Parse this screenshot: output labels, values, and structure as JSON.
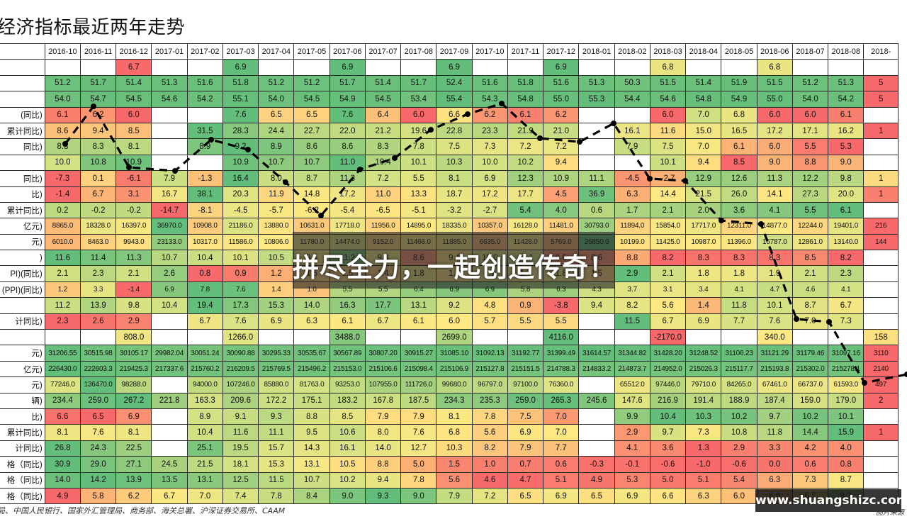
{
  "title": "经济指标最近两年走势",
  "months": [
    "2016-10",
    "2016-11",
    "2016-12",
    "2017-01",
    "2017-02",
    "2017-03",
    "2017-04",
    "2017-05",
    "2017-06",
    "2017-07",
    "2017-08",
    "2017-09",
    "2017-10",
    "2017-11",
    "2017-12",
    "2018-01",
    "2018-02",
    "2018-03",
    "2018-04",
    "2018-05",
    "2018-06",
    "2018-07",
    "2018-08",
    "2018-"
  ],
  "rows": [
    {
      "label": "",
      "cells": [
        "",
        "",
        "6.7",
        "",
        "",
        "6.9",
        "",
        "",
        "6.9",
        "",
        "",
        "6.9",
        "",
        "",
        "6.9",
        "",
        "",
        "6.8",
        "",
        "",
        "6.8",
        "",
        "",
        ""
      ]
    },
    {
      "label": "",
      "cells": [
        "51.2",
        "51.7",
        "51.4",
        "51.3",
        "51.6",
        "51.8",
        "51.2",
        "51.2",
        "51.7",
        "51.4",
        "51.7",
        "52.4",
        "51.6",
        "51.8",
        "51.6",
        "51.3",
        "50.3",
        "51.5",
        "51.4",
        "51.9",
        "51.5",
        "51.2",
        "51.3",
        "5"
      ]
    },
    {
      "label": "",
      "cells": [
        "54.0",
        "54.7",
        "54.5",
        "54.6",
        "54.2",
        "55.1",
        "54.0",
        "54.5",
        "54.9",
        "54.5",
        "53.4",
        "55.4",
        "54.3",
        "54.8",
        "55.0",
        "55.3",
        "54.4",
        "54.6",
        "54.8",
        "54.9",
        "55.0",
        "54.0",
        "54.2",
        "5"
      ]
    },
    {
      "label": "(同比)",
      "cells": [
        "6.1",
        "6.2",
        "6.0",
        "",
        "",
        "7.6",
        "6.5",
        "6.5",
        "7.6",
        "6.4",
        "6.0",
        "6.6",
        "6.2",
        "6.1",
        "6.2",
        "",
        "",
        "6.0",
        "7.0",
        "6.8",
        "6.0",
        "6.0",
        "6.1",
        ""
      ]
    },
    {
      "label": "累计同比)",
      "cells": [
        "8.6",
        "9.4",
        "8.5",
        "",
        "31.5",
        "28.3",
        "24.4",
        "22.7",
        "22.0",
        "21.2",
        "19.6",
        "22.8",
        "23.3",
        "21.9",
        "21.0",
        "",
        "16.1",
        "11.6",
        "15.0",
        "16.5",
        "17.2",
        "17.1",
        "16.2",
        "1"
      ]
    },
    {
      "label": "同比)",
      "cells": [
        "8.3",
        "8.3",
        "8.1",
        "",
        "8.9",
        "9.2",
        "8.9",
        "8.6",
        "8.6",
        "8.3",
        "7.8",
        "7.5",
        "7.3",
        "7.2",
        "7.2",
        "",
        "7.9",
        "7.5",
        "7.0",
        "6.1",
        "6.0",
        "5.5",
        "5.3",
        ""
      ]
    },
    {
      "label": "",
      "cells": [
        "10.0",
        "10.8",
        "10.9",
        "",
        "",
        "10.9",
        "10.7",
        "10.7",
        "11.0",
        "10.4",
        "10.1",
        "10.3",
        "10.0",
        "10.2",
        "9.4",
        "",
        "",
        "10.1",
        "9.4",
        "8.5",
        "9.0",
        "8.8",
        "9.0",
        ""
      ]
    },
    {
      "label": "同比)",
      "cells": [
        "-7.3",
        "0.1",
        "-6.1",
        "7.9",
        "-1.3",
        "16.4",
        "8.0",
        "8.7",
        "11.3",
        "7.2",
        "5.5",
        "8.1",
        "6.9",
        "12.3",
        "10.9",
        "11.1",
        "-4.5",
        "-2.7",
        "12.9",
        "12.6",
        "11.3",
        "12.2",
        "9.8",
        "1"
      ]
    },
    {
      "label": "比)",
      "cells": [
        "-1.4",
        "6.7",
        "3.1",
        "16.7",
        "38.1",
        "20.3",
        "11.9",
        "14.8",
        "17.2",
        "11.0",
        "13.3",
        "18.7",
        "17.2",
        "17.7",
        "4.5",
        "36.9",
        "6.3",
        "14.4",
        "21.5",
        "26.0",
        "14.1",
        "27.3",
        "20.0",
        "1"
      ]
    },
    {
      "label": "累计同比)",
      "cells": [
        "0.2",
        "-0.2",
        "-0.2",
        "-14.7",
        "-8.1",
        "-4.5",
        "-5.7",
        "-6.2",
        "-5.4",
        "-6.5",
        "-5.1",
        "-3.2",
        "-2.7",
        "5.4",
        "4.0",
        "0.6",
        "1.7",
        "2.1",
        "2.0",
        "3.6",
        "4.1",
        "5.5",
        "6.1",
        ""
      ]
    },
    {
      "label": "亿元)",
      "small": true,
      "cells": [
        "8865.0",
        "18328.0",
        "16397.0",
        "36970.0",
        "10908.0",
        "21186.0",
        "13880.0",
        "10631.0",
        "17718.0",
        "11956.0",
        "14895.0",
        "18335.0",
        "10357.0",
        "16128.0",
        "11481.0",
        "30793.0",
        "11894.0",
        "15854.0",
        "17717.0",
        "12311.0",
        "14877.0",
        "12244.0",
        "19401.0",
        "216"
      ]
    },
    {
      "label": "元)",
      "small": true,
      "cells": [
        "6010.0",
        "8463.0",
        "9943.0",
        "23133.0",
        "10317.0",
        "11586.0",
        "10806.0",
        "11780.0",
        "14474.0",
        "9152.0",
        "11466.0",
        "11885.0",
        "6635.0",
        "11428.0",
        "5769.0",
        "26850.0",
        "10199.0",
        "11425.0",
        "10987.0",
        "11396.0",
        "16787.0",
        "12861.0",
        "13140.0",
        "144"
      ]
    },
    {
      "label": ")",
      "cells": [
        "11.6",
        "11.4",
        "11.3",
        "10.7",
        "10.4",
        "10.1",
        "10.5",
        "9.6",
        "11.2",
        "9.8",
        "8.6",
        "9.4",
        "10.0",
        "10.1",
        "8.6",
        "8.6",
        "8.8",
        "8.2",
        "8.3",
        "8.3",
        "8.3",
        "8.5",
        "8.2",
        ""
      ]
    },
    {
      "label": "PI)(同比)",
      "cells": [
        "2.1",
        "2.3",
        "2.1",
        "2.6",
        "0.8",
        "0.9",
        "1.2",
        "1.5",
        "1.5",
        "1.4",
        "1.8",
        "1.6",
        "1.9",
        "1.7",
        "1.8",
        "1.5",
        "2.9",
        "2.1",
        "1.8",
        "1.8",
        "1.9",
        "2.1",
        "2.3",
        ""
      ]
    },
    {
      "label": "(PPI)(同比)",
      "small": true,
      "cells": [
        "1.2",
        "3.3",
        "-1.4",
        "6.9",
        "7.8",
        "7.6",
        "1.4",
        "1.0",
        "5.5",
        "5.5",
        "6.4",
        "6.9",
        "6.9",
        "5.8",
        "6.3",
        "4.3",
        "3.7",
        "3.1",
        "3.4",
        "4.1",
        "4.7",
        "4.6",
        "4.1",
        ""
      ]
    },
    {
      "label": "",
      "cells": [
        "11.2",
        "13.9",
        "9.8",
        "10.4",
        "19.4",
        "17.3",
        "15.3",
        "14.0",
        "16.3",
        "17.7",
        "13.1",
        "9.2",
        "4.8",
        "0.9",
        "-3.8",
        "9.4",
        "8.2",
        "5.6",
        "1.4",
        "11.8",
        "10.1",
        "8.7",
        "6.7",
        ""
      ]
    },
    {
      "label": "计同比)",
      "cells": [
        "2.3",
        "2.6",
        "2.9",
        "",
        "6.7",
        "7.6",
        "6.9",
        "6.3",
        "6.1",
        "6.7",
        "6.1",
        "6.0",
        "5.7",
        "5.5",
        "5.5",
        "",
        "11.5",
        "6.7",
        "6.9",
        "7.7",
        "7.6",
        "7.0",
        "7.3",
        ""
      ]
    },
    {
      "label": "",
      "cells": [
        "",
        "",
        "808.0",
        "",
        "",
        "1266.0",
        "",
        "",
        "3488.0",
        "",
        "",
        "2699.0",
        "",
        "",
        "4116.0",
        "",
        "",
        "-2170.0",
        "",
        "",
        "340.0",
        "",
        "",
        "158"
      ]
    },
    {
      "label": "元)",
      "small": true,
      "cells": [
        "31206.55",
        "30515.98",
        "30105.17",
        "29982.04",
        "30051.24",
        "30090.88",
        "30295.33",
        "30535.67",
        "30567.89",
        "30807.20",
        "30915.27",
        "31085.10",
        "31092.13",
        "31192.77",
        "31399.49",
        "31614.57",
        "31344.82",
        "31428.20",
        "31248.52",
        "31106.23",
        "31121.29",
        "31179.46",
        "31097.16",
        "3110"
      ]
    },
    {
      "label": "亿元)",
      "small": true,
      "cells": [
        "226430.0",
        "222603.3",
        "219425.3",
        "217337.6",
        "215760.2",
        "216209.5",
        "215769.5",
        "215496.2",
        "215153.0",
        "215106.6",
        "215098.4",
        "215106.9",
        "215127.8",
        "215151.5",
        "214788.3",
        "214833.2",
        "214873.7",
        "214952.0",
        "215026.3",
        "215117.7",
        "215193.8",
        "215302.0",
        "215278.1",
        "2140"
      ]
    },
    {
      "label": "元)",
      "small": true,
      "cells": [
        "77246.0",
        "136470.0",
        "98288.0",
        "",
        "94000.0",
        "107246.0",
        "85880.0",
        "81763.0",
        "93253.0",
        "107955.0",
        "111726.0",
        "99680.0",
        "96797.0",
        "97100.0",
        "76360.0",
        "",
        "65512.0",
        "97446.0",
        "79710.0",
        "84265.0",
        "67461.0",
        "66737.0",
        "61593.0",
        "497"
      ]
    },
    {
      "label": "辆)",
      "cells": [
        "234.4",
        "259.0",
        "267.2",
        "221.8",
        "163.3",
        "209.6",
        "172.2",
        "175.1",
        "183.2",
        "167.8",
        "187.5",
        "234.3",
        "235.3",
        "259.0",
        "265.3",
        "245.6",
        "147.6",
        "216.9",
        "191.4",
        "188.9",
        "187.4",
        "159.0",
        "179.0",
        "2"
      ]
    },
    {
      "label": "比)",
      "cells": [
        "6.6",
        "6.5",
        "6.9",
        "",
        "8.9",
        "9.1",
        "9.3",
        "8.8",
        "8.5",
        "7.9",
        "7.9",
        "8.1",
        "7.8",
        "7.5",
        "7.0",
        "",
        "9.9",
        "10.4",
        "10.3",
        "10.2",
        "9.7",
        "10.2",
        "10.1",
        ""
      ]
    },
    {
      "label": "累计同比)",
      "cells": [
        "8.1",
        "7.6",
        "8.1",
        "",
        "10.4",
        "11.6",
        "11.1",
        "9.5",
        "10.6",
        "8.0",
        "7.6",
        "6.8",
        "5.6",
        "6.9",
        "7.0",
        "",
        "2.9",
        "9.7",
        "7.3",
        "10.8",
        "11.8",
        "14.4",
        "15.9",
        "1"
      ]
    },
    {
      "label": "计同比)",
      "cells": [
        "26.8",
        "24.3",
        "22.5",
        "",
        "25.1",
        "19.5",
        "15.7",
        "14.3",
        "16.1",
        "14.0",
        "12.7",
        "10.3",
        "8.2",
        "7.9",
        "7.7",
        "",
        "4.1",
        "3.6",
        "1.3",
        "2.9",
        "3.3",
        "4.2",
        "4.0",
        ""
      ]
    },
    {
      "label": "格（同比)",
      "cells": [
        "30.9",
        "29.0",
        "27.1",
        "24.5",
        "21.5",
        "18.1",
        "15.3",
        "13.1",
        "10.5",
        "8.8",
        "5.0",
        "1.5",
        "1.0",
        "0.7",
        "0.6",
        "-0.3",
        "-0.1",
        "-0.6",
        "-1.0",
        "-0.6",
        "0.0",
        "0.6",
        "0.8",
        ""
      ]
    },
    {
      "label": "格（同比)",
      "cells": [
        "14.0",
        "14.2",
        "13.9",
        "13.5",
        "13.1",
        "12.5",
        "11.5",
        "10.7",
        "10.2",
        "9.4",
        "7.8",
        "5.6",
        "4.6",
        "4.7",
        "5.1",
        "4.9",
        "5.3",
        "5.0",
        "5.1",
        "5.4",
        "6.3",
        "7.3",
        "8.7",
        ""
      ]
    },
    {
      "label": "格（同比)",
      "cells": [
        "4.9",
        "5.8",
        "6.2",
        "6.7",
        "7.0",
        "7.4",
        "7.8",
        "8.4",
        "9.0",
        "9.3",
        "9.0",
        "7.9",
        "7.2",
        "6.5",
        "6.9",
        "6.5",
        "6.9",
        "6.6",
        "6.3",
        "6.0",
        "6.0",
        "6.7",
        "8.3",
        ""
      ]
    }
  ],
  "source": "局、中国人民银行、国家外汇管理局、商务部、海关总署、沪深证券交易所、CAAM",
  "slogan": "拼尽全力，一起创造传奇！",
  "watermark": "www.shuangshizc.com",
  "watermark_sub": "图片来源",
  "palette": {
    "strong_green": "#63be7b",
    "green": "#a9d27f",
    "yellow_green": "#d5e283",
    "yellow": "#fee883",
    "orange": "#fbb376",
    "red": "#f8696b"
  },
  "chart_data": {
    "type": "table",
    "title": "经济指标最近两年走势",
    "columns": [
      "2016-10",
      "2016-11",
      "2016-12",
      "2017-01",
      "2017-02",
      "2017-03",
      "2017-04",
      "2017-05",
      "2017-06",
      "2017-07",
      "2017-08",
      "2017-09",
      "2017-10",
      "2017-11",
      "2017-12",
      "2018-01",
      "2018-02",
      "2018-03",
      "2018-04",
      "2018-05",
      "2018-06",
      "2018-07",
      "2018-08",
      "2018-"
    ],
    "note_rows_from": "rows",
    "overlay_line": {
      "type": "line",
      "style": "dashed",
      "y": [
        0.35,
        0.32,
        0.23,
        0.22,
        0.21,
        0.19,
        0.18,
        0.15,
        0.18,
        0.19,
        0.14,
        0.22,
        0.28,
        0.11,
        0.1,
        0.24,
        0.28,
        0.3,
        0.22,
        0.25,
        0.27,
        0.18,
        0.11,
        0.1,
        0.12,
        0.13
      ]
    }
  }
}
